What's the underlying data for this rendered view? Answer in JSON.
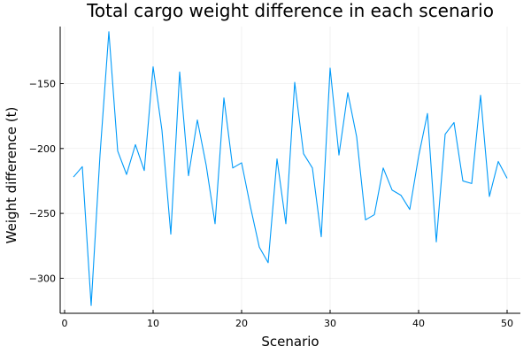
{
  "chart_data": {
    "type": "line",
    "title": "Total cargo weight difference in each scenario",
    "xlabel": "Scenario",
    "ylabel": "Weight difference (t)",
    "xlim": [
      -0.5,
      51.5
    ],
    "ylim": [
      -327,
      -106
    ],
    "x_ticks": [
      0,
      10,
      20,
      30,
      40,
      50
    ],
    "y_ticks": [
      -300,
      -250,
      -200,
      -150
    ],
    "grid": true,
    "legend": "none",
    "series": [
      {
        "color": "#009af9",
        "x": [
          1,
          2,
          3,
          4,
          5,
          6,
          7,
          8,
          9,
          10,
          11,
          12,
          13,
          14,
          15,
          16,
          17,
          18,
          19,
          20,
          21,
          22,
          23,
          24,
          25,
          26,
          27,
          28,
          29,
          30,
          31,
          32,
          33,
          34,
          35,
          36,
          37,
          38,
          39,
          40,
          41,
          42,
          43,
          44,
          45,
          46,
          47,
          48,
          49,
          50
        ],
        "values": [
          -222,
          -214,
          -321,
          -205,
          -110,
          -202,
          -220,
          -197,
          -217,
          -137,
          -186,
          -266,
          -141,
          -221,
          -178,
          -213,
          -258,
          -161,
          -215,
          -211,
          -245,
          -276,
          -288,
          -208,
          -258,
          -149,
          -204,
          -215,
          -268,
          -138,
          -205,
          -157,
          -191,
          -255,
          -251,
          -215,
          -232,
          -236,
          -247,
          -206,
          -173,
          -272,
          -189,
          -180,
          -225,
          -227,
          -159,
          -237,
          -210,
          -223
        ]
      }
    ]
  }
}
